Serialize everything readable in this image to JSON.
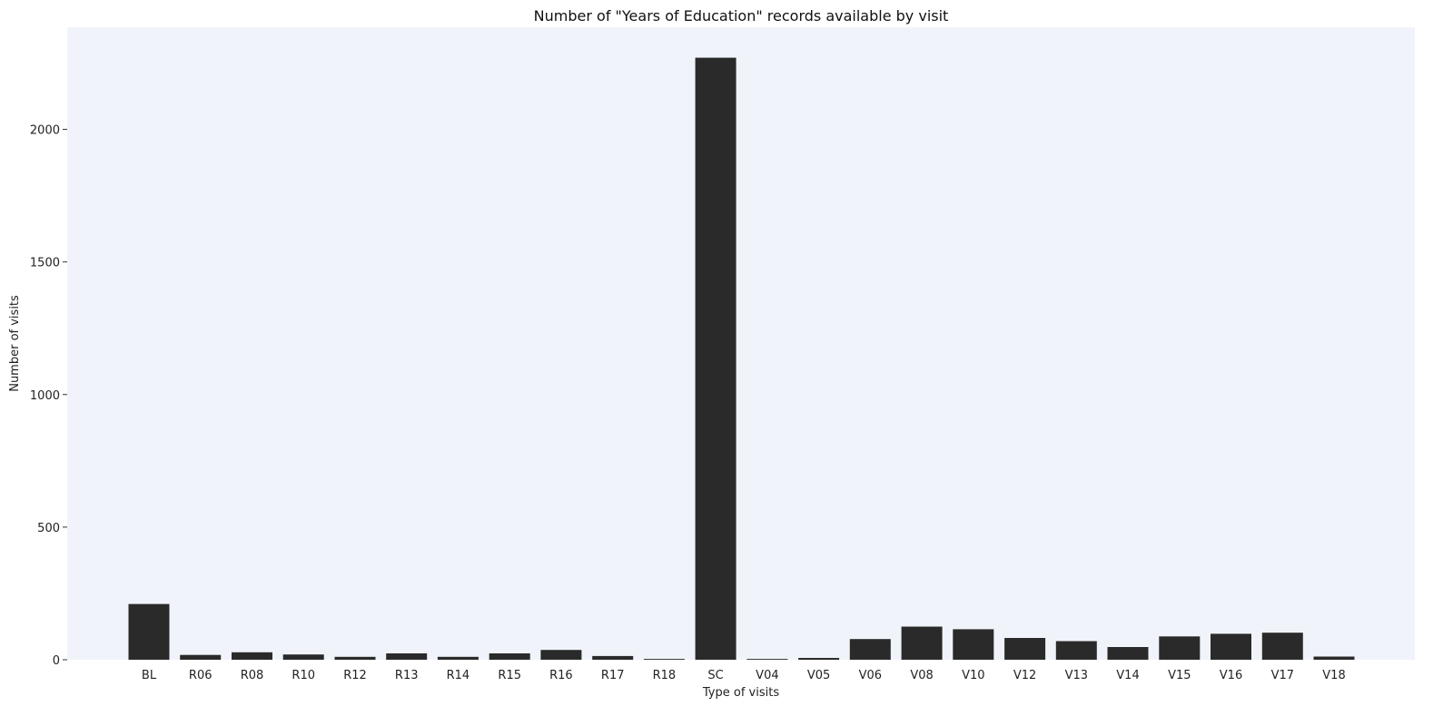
{
  "chart_data": {
    "type": "bar",
    "title": "Number of \"Years of Education\" records available by visit",
    "xlabel": "Type of visits",
    "ylabel": "Number of visits",
    "categories": [
      "BL",
      "R06",
      "R08",
      "R10",
      "R12",
      "R13",
      "R14",
      "R15",
      "R16",
      "R17",
      "R18",
      "SC",
      "V04",
      "V05",
      "V06",
      "V08",
      "V10",
      "V12",
      "V13",
      "V14",
      "V15",
      "V16",
      "V17",
      "V18"
    ],
    "values": [
      210,
      18,
      28,
      20,
      11,
      24,
      11,
      24,
      37,
      14,
      3,
      2270,
      3,
      7,
      78,
      125,
      115,
      82,
      70,
      48,
      88,
      98,
      102,
      12
    ],
    "ylim": [
      0,
      2385
    ],
    "yticks": [
      0,
      500,
      1000,
      1500,
      2000
    ],
    "grid": false,
    "colors": {
      "bar": "#2a2a2a",
      "plot_background": "#f0f4fa"
    }
  }
}
